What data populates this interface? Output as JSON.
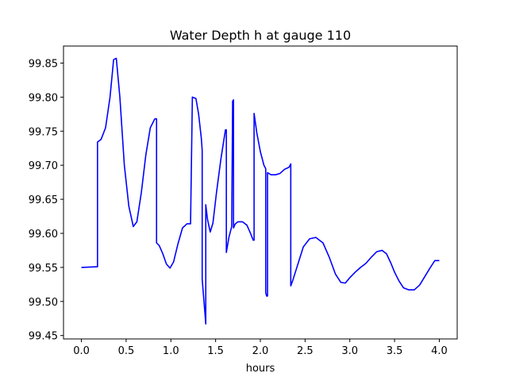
{
  "chart_data": {
    "type": "line",
    "title": "Water Depth h at gauge 110",
    "xlabel": "hours",
    "ylabel": "",
    "xlim": [
      -0.2,
      4.2
    ],
    "ylim": [
      99.445,
      99.875
    ],
    "xticks": [
      0.0,
      0.5,
      1.0,
      1.5,
      2.0,
      2.5,
      3.0,
      3.5,
      4.0
    ],
    "xtick_labels": [
      "0.0",
      "0.5",
      "1.0",
      "1.5",
      "2.0",
      "2.5",
      "3.0",
      "3.5",
      "4.0"
    ],
    "yticks": [
      99.45,
      99.5,
      99.55,
      99.6,
      99.65,
      99.7,
      99.75,
      99.8,
      99.85
    ],
    "ytick_labels": [
      "99.45",
      "99.50",
      "99.55",
      "99.60",
      "99.65",
      "99.70",
      "99.75",
      "99.80",
      "99.85"
    ],
    "grid": false,
    "series": [
      {
        "name": "h",
        "color": "#0000ff",
        "x": [
          0.0,
          0.17,
          0.18,
          0.18,
          0.22,
          0.27,
          0.32,
          0.36,
          0.39,
          0.43,
          0.48,
          0.53,
          0.58,
          0.62,
          0.67,
          0.72,
          0.77,
          0.82,
          0.84,
          0.84,
          0.87,
          0.91,
          0.95,
          0.99,
          1.03,
          1.08,
          1.13,
          1.18,
          1.22,
          1.24,
          1.24,
          1.28,
          1.31,
          1.34,
          1.35,
          1.35,
          1.39,
          1.39,
          1.41,
          1.44,
          1.47,
          1.51,
          1.56,
          1.61,
          1.62,
          1.62,
          1.65,
          1.68,
          1.69,
          1.69,
          1.7,
          1.7,
          1.72,
          1.75,
          1.8,
          1.85,
          1.89,
          1.92,
          1.93,
          1.93,
          1.96,
          2.0,
          2.04,
          2.06,
          2.06,
          2.07,
          2.08,
          2.08,
          2.12,
          2.17,
          2.22,
          2.27,
          2.32,
          2.34,
          2.34,
          2.36,
          2.42,
          2.48,
          2.55,
          2.62,
          2.7,
          2.77,
          2.84,
          2.9,
          2.95,
          3.0,
          3.06,
          3.12,
          3.18,
          3.24,
          3.3,
          3.36,
          3.41,
          3.46,
          3.5,
          3.55,
          3.6,
          3.66,
          3.72,
          3.78,
          3.84,
          3.9,
          3.95,
          4.0
        ],
        "y": [
          99.55,
          99.551,
          99.551,
          99.734,
          99.738,
          99.755,
          99.8,
          99.855,
          99.857,
          99.8,
          99.7,
          99.64,
          99.61,
          99.617,
          99.66,
          99.715,
          99.755,
          99.768,
          99.768,
          99.586,
          99.582,
          99.57,
          99.555,
          99.549,
          99.558,
          99.585,
          99.608,
          99.614,
          99.614,
          99.798,
          99.8,
          99.798,
          99.775,
          99.74,
          99.722,
          99.533,
          99.467,
          99.642,
          99.62,
          99.602,
          99.615,
          99.66,
          99.71,
          99.752,
          99.752,
          99.572,
          99.595,
          99.61,
          99.791,
          99.794,
          99.796,
          99.608,
          99.614,
          99.617,
          99.617,
          99.612,
          99.6,
          99.59,
          99.59,
          99.776,
          99.748,
          99.72,
          99.7,
          99.695,
          99.513,
          99.508,
          99.508,
          99.689,
          99.686,
          99.686,
          99.688,
          99.694,
          99.697,
          99.702,
          99.523,
          99.53,
          99.555,
          99.58,
          99.592,
          99.594,
          99.586,
          99.565,
          99.54,
          99.528,
          99.527,
          99.535,
          99.543,
          99.55,
          99.556,
          99.565,
          99.573,
          99.575,
          99.57,
          99.556,
          99.543,
          99.53,
          99.52,
          99.517,
          99.517,
          99.524,
          99.537,
          99.55,
          99.56,
          99.56
        ]
      }
    ]
  }
}
